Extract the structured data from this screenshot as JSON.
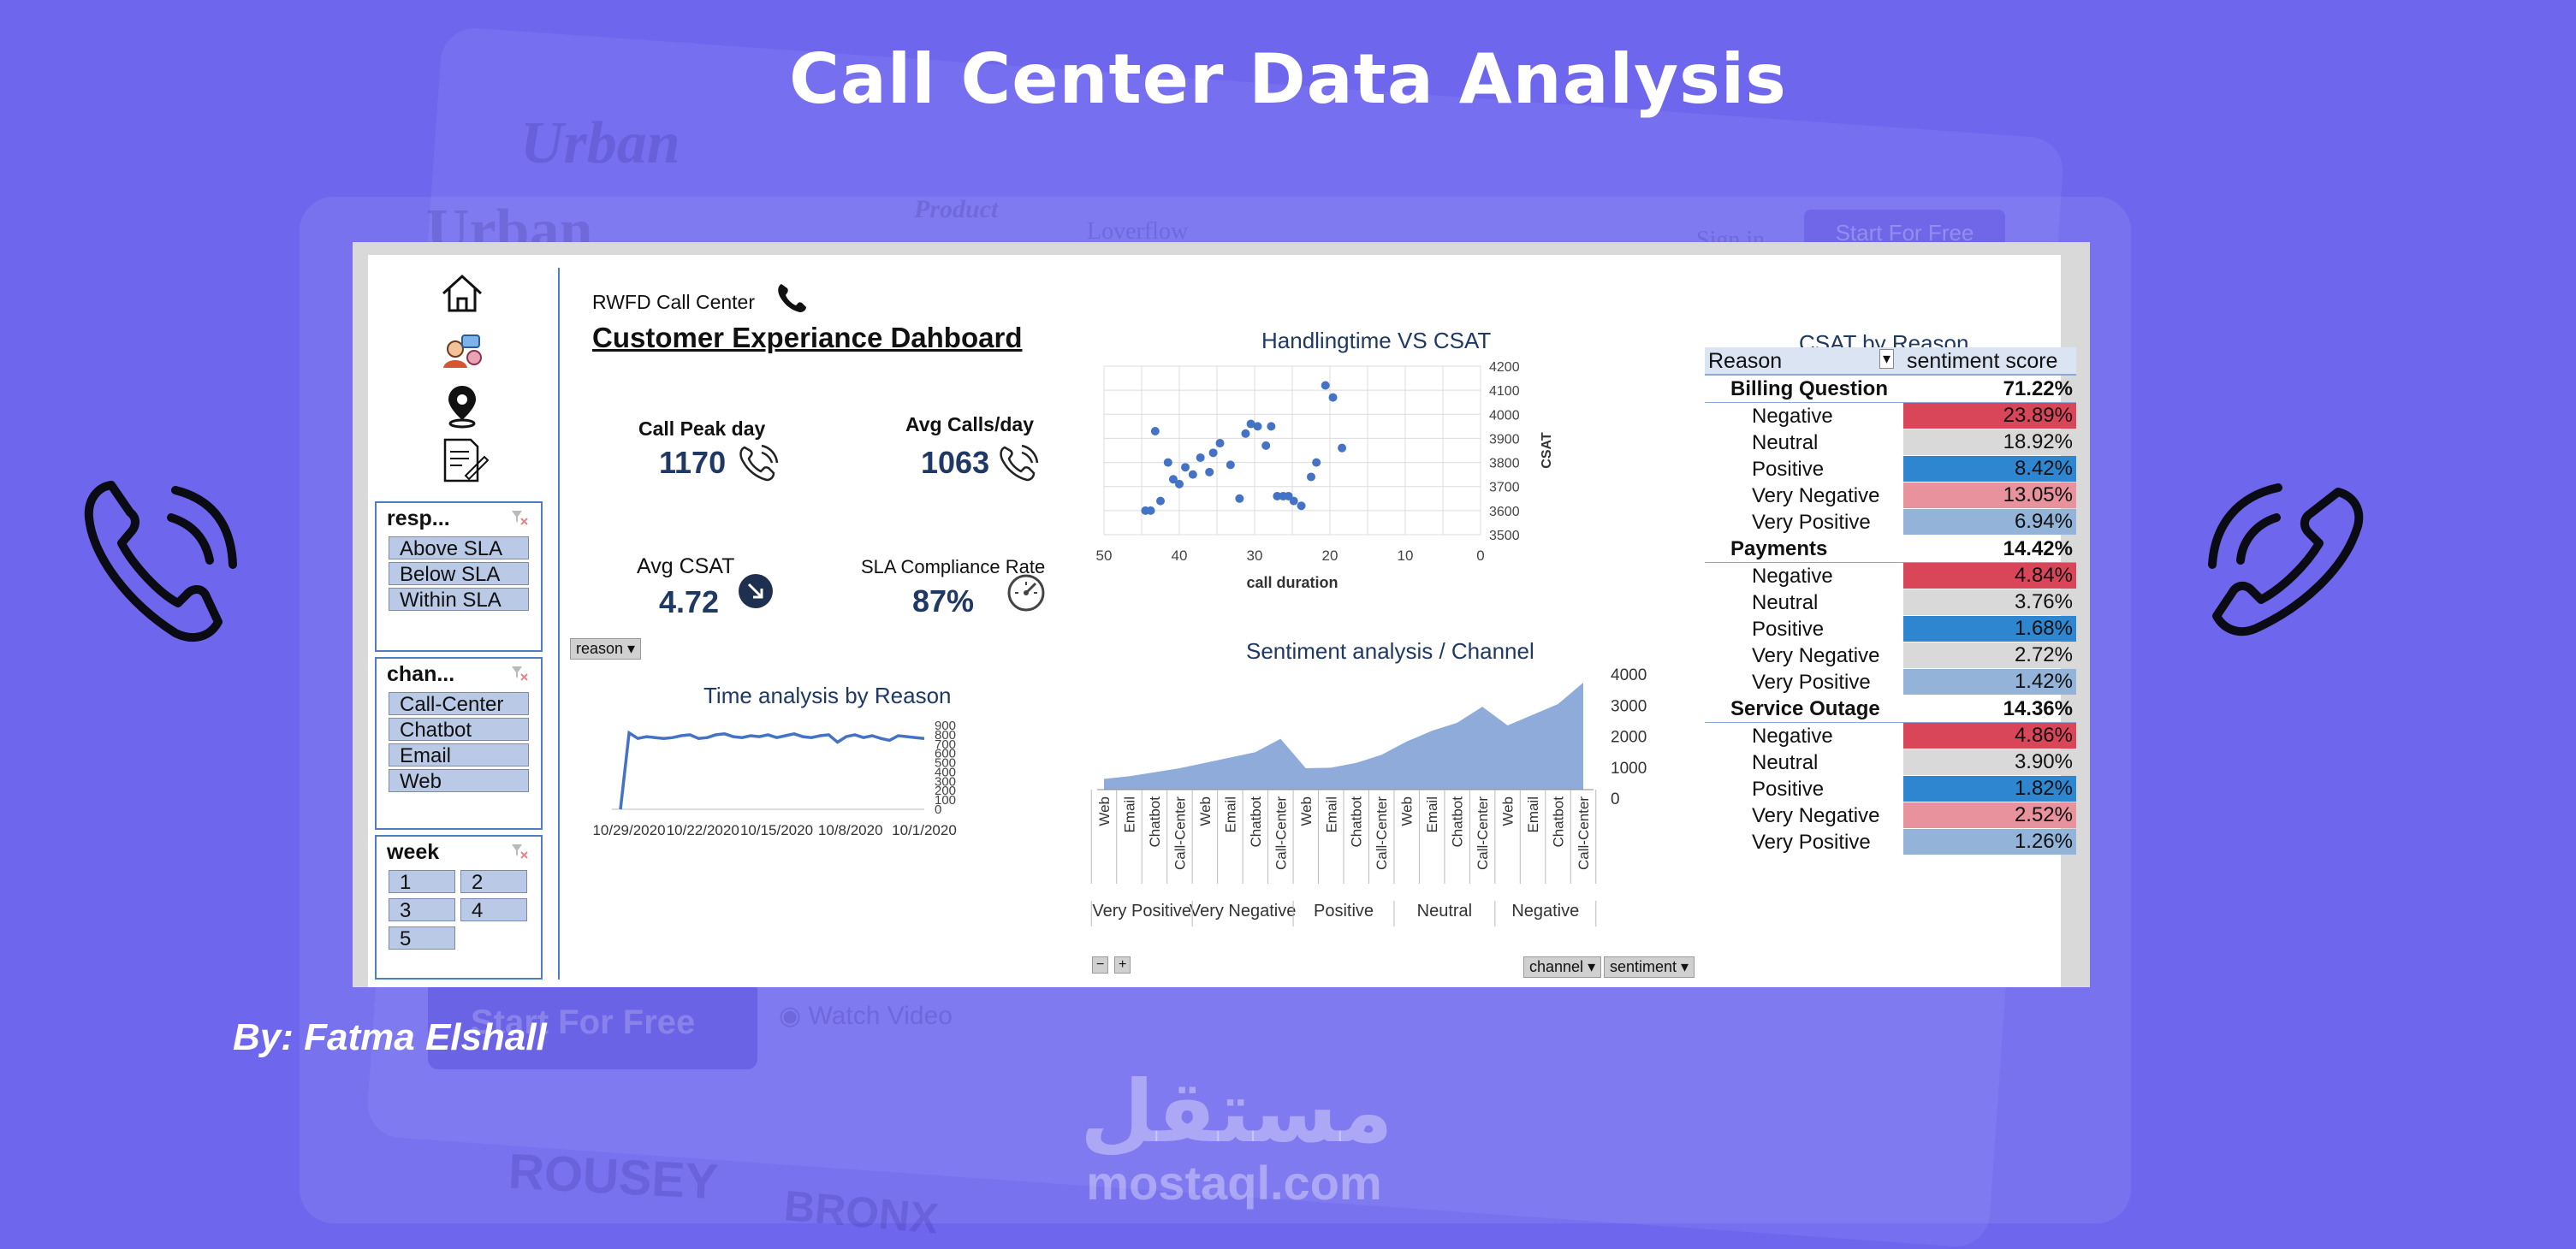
{
  "page": {
    "title": "Call Center Data Analysis",
    "byline": "By: Fatma Elshall",
    "watermark_ar": "مستقل",
    "watermark_en": "mostaql.com"
  },
  "background": {
    "brand1": "Urban",
    "brand2": "Urban",
    "nav_product": "Product",
    "nav_overflow": "Loverflow",
    "nav_signin": "Sign in",
    "nav_start": "Start For Free",
    "cta_start": "Start For Free",
    "cta_watch": "Watch Video",
    "logo1": "ROUSEY",
    "logo2": "BRONX"
  },
  "dashboard": {
    "company": "RWFD Call Center",
    "title": "Customer Experiance Dahboard",
    "kpis": {
      "peak_label": "Call Peak day",
      "peak_value": "1170",
      "avg_calls_label": "Avg Calls/day",
      "avg_calls_value": "1063",
      "csat_label": "Avg CSAT",
      "csat_value": "4.72",
      "sla_label": "SLA Compliance Rate",
      "sla_value": "87%"
    },
    "reason_filter": "reason"
  },
  "slicers": {
    "response": {
      "title": "resp...",
      "items": [
        "Above SLA",
        "Below SLA",
        "Within SLA"
      ]
    },
    "channel": {
      "title": "chan...",
      "items": [
        "Call-Center",
        "Chatbot",
        "Email",
        "Web"
      ]
    },
    "week": {
      "title": "week",
      "items": [
        "1",
        "2",
        "3",
        "4",
        "5"
      ]
    }
  },
  "nav_icons": [
    "home-icon",
    "agents-icon",
    "location-icon",
    "report-icon"
  ],
  "colors": {
    "negative": "#d9465a",
    "neutral": "#d9d9d9",
    "positive": "#2e86d0",
    "very_negative": "#e8929d",
    "very_positive": "#93b4d8",
    "chart_blue": "#4472c4",
    "area": "#8eabd9"
  },
  "chart_data": [
    {
      "type": "scatter",
      "title": "Handlingtime VS CSAT",
      "xlabel": "call duration",
      "ylabel": "CSAT",
      "xlim": [
        50,
        0
      ],
      "ylim": [
        3500,
        4200
      ],
      "x_ticks": [
        "50",
        "40",
        "30",
        "20",
        "10",
        "0"
      ],
      "y_ticks": [
        "4200",
        "4100",
        "4000",
        "3900",
        "3800",
        "3700",
        "3600",
        "3500"
      ],
      "points": [
        [
          44.5,
          3600
        ],
        [
          43.8,
          3600
        ],
        [
          43.2,
          3930
        ],
        [
          42.5,
          3640
        ],
        [
          41.5,
          3800
        ],
        [
          40.8,
          3730
        ],
        [
          40,
          3710
        ],
        [
          39.2,
          3780
        ],
        [
          38.2,
          3750
        ],
        [
          37.2,
          3820
        ],
        [
          36,
          3760
        ],
        [
          35.5,
          3840
        ],
        [
          34.6,
          3880
        ],
        [
          33.2,
          3790
        ],
        [
          32,
          3650
        ],
        [
          31.2,
          3920
        ],
        [
          30.5,
          3960
        ],
        [
          29.6,
          3950
        ],
        [
          28.5,
          3870
        ],
        [
          27.8,
          3950
        ],
        [
          27,
          3660
        ],
        [
          26.2,
          3660
        ],
        [
          25.5,
          3660
        ],
        [
          24.8,
          3640
        ],
        [
          23.8,
          3620
        ],
        [
          22.5,
          3740
        ],
        [
          21.8,
          3800
        ],
        [
          20.6,
          4120
        ],
        [
          19.6,
          4070
        ],
        [
          18.4,
          3860
        ]
      ]
    },
    {
      "type": "line",
      "title": "Time analysis by Reason",
      "x_ticks": [
        "10/29/2020",
        "10/22/2020",
        "10/15/2020",
        "10/8/2020",
        "10/1/2020"
      ],
      "y_ticks": [
        "900",
        "800",
        "700",
        "600",
        "500",
        "400",
        "300",
        "200",
        "100",
        "0"
      ],
      "ylim": [
        0,
        900
      ],
      "values": [
        0,
        820,
        760,
        780,
        770,
        760,
        770,
        790,
        800,
        760,
        770,
        800,
        810,
        780,
        770,
        790,
        780,
        800,
        770,
        790,
        810,
        780,
        770,
        790,
        800,
        720,
        780,
        800,
        770,
        790,
        760,
        740,
        790,
        780,
        770,
        760
      ]
    },
    {
      "type": "area",
      "title": "Sentiment analysis / Channel",
      "groups": [
        "Very Positive",
        "Very Negative",
        "Positive",
        "Neutral",
        "Negative"
      ],
      "categories": [
        "Web",
        "Email",
        "Chatbot",
        "Call-Center",
        "Web",
        "Email",
        "Chatbot",
        "Call-Center",
        "Web",
        "Email",
        "Chatbot",
        "Call-Center",
        "Web",
        "Email",
        "Chatbot",
        "Call-Center",
        "Web",
        "Email",
        "Chatbot",
        "Call-Center"
      ],
      "values": [
        400,
        500,
        650,
        800,
        1000,
        1200,
        1400,
        1900,
        800,
        820,
        1000,
        1300,
        1800,
        2200,
        2500,
        3100,
        2400,
        2800,
        3200,
        4000
      ],
      "y_ticks": [
        "4000",
        "3000",
        "2000",
        "1000",
        "0"
      ],
      "ylim": [
        0,
        4000
      ],
      "filters": [
        "channel",
        "sentiment"
      ]
    },
    {
      "type": "table",
      "title": "CSAT  by Reason",
      "headers": [
        "Reason",
        "sentiment score"
      ],
      "groups": [
        {
          "name": "Billing Question",
          "total": "71.22%",
          "rows": [
            {
              "label": "Negative",
              "value": "23.89%",
              "kind": "negative"
            },
            {
              "label": "Neutral",
              "value": "18.92%",
              "kind": "neutral"
            },
            {
              "label": "Positive",
              "value": "8.42%",
              "kind": "positive"
            },
            {
              "label": "Very Negative",
              "value": "13.05%",
              "kind": "very_negative"
            },
            {
              "label": "Very Positive",
              "value": "6.94%",
              "kind": "very_positive"
            }
          ]
        },
        {
          "name": "Payments",
          "total": "14.42%",
          "rows": [
            {
              "label": "Negative",
              "value": "4.84%",
              "kind": "negative"
            },
            {
              "label": "Neutral",
              "value": "3.76%",
              "kind": "neutral"
            },
            {
              "label": "Positive",
              "value": "1.68%",
              "kind": "positive"
            },
            {
              "label": "Very Negative",
              "value": "2.72%",
              "kind": "neutral"
            },
            {
              "label": "Very Positive",
              "value": "1.42%",
              "kind": "very_positive"
            }
          ]
        },
        {
          "name": "Service Outage",
          "total": "14.36%",
          "rows": [
            {
              "label": "Negative",
              "value": "4.86%",
              "kind": "negative"
            },
            {
              "label": "Neutral",
              "value": "3.90%",
              "kind": "neutral"
            },
            {
              "label": "Positive",
              "value": "1.82%",
              "kind": "positive"
            },
            {
              "label": "Very Negative",
              "value": "2.52%",
              "kind": "very_negative"
            },
            {
              "label": "Very Positive",
              "value": "1.26%",
              "kind": "very_positive"
            }
          ]
        }
      ]
    }
  ]
}
